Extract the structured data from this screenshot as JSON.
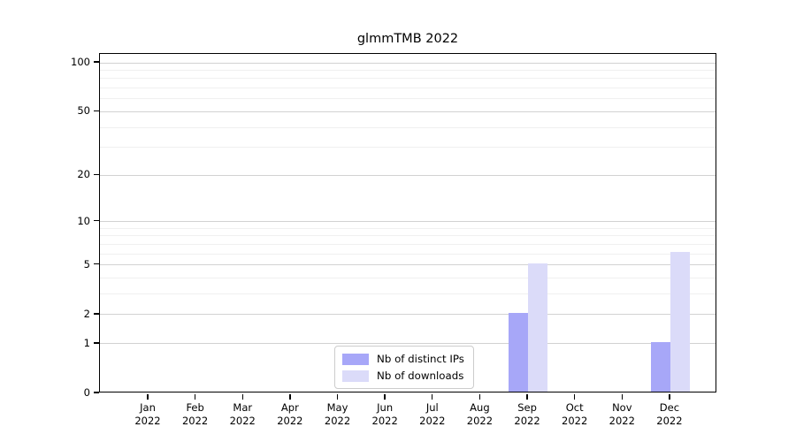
{
  "chart_data": {
    "type": "bar",
    "title": "glmmTMB 2022",
    "categories": [
      "Jan",
      "Feb",
      "Mar",
      "Apr",
      "May",
      "Jun",
      "Jul",
      "Aug",
      "Sep",
      "Oct",
      "Nov",
      "Dec"
    ],
    "category_year": "2022",
    "series": [
      {
        "name": "Nb of distinct IPs",
        "color": "#a7a7f8",
        "values": [
          0,
          0,
          0,
          0,
          0,
          0,
          0,
          0,
          2,
          0,
          0,
          1
        ]
      },
      {
        "name": "Nb of downloads",
        "color": "#dbdbf9",
        "values": [
          0,
          0,
          0,
          0,
          0,
          0,
          0,
          0,
          5,
          0,
          0,
          6
        ]
      }
    ],
    "xlabel": "",
    "ylabel": "",
    "yscale": "log1p",
    "ylim": [
      0,
      113.3
    ],
    "yticks": [
      0,
      1,
      2,
      5,
      10,
      20,
      50,
      100
    ],
    "minor_yticks": [
      3,
      4,
      6,
      7,
      8,
      9,
      30,
      40,
      60,
      70,
      80,
      90
    ],
    "grid": true,
    "legend_position": "bottom-center"
  },
  "colors": {
    "axis": "#000000",
    "major_grid": "#d2d2d2",
    "minor_grid": "#f0f0f0",
    "background": "#ffffff"
  }
}
